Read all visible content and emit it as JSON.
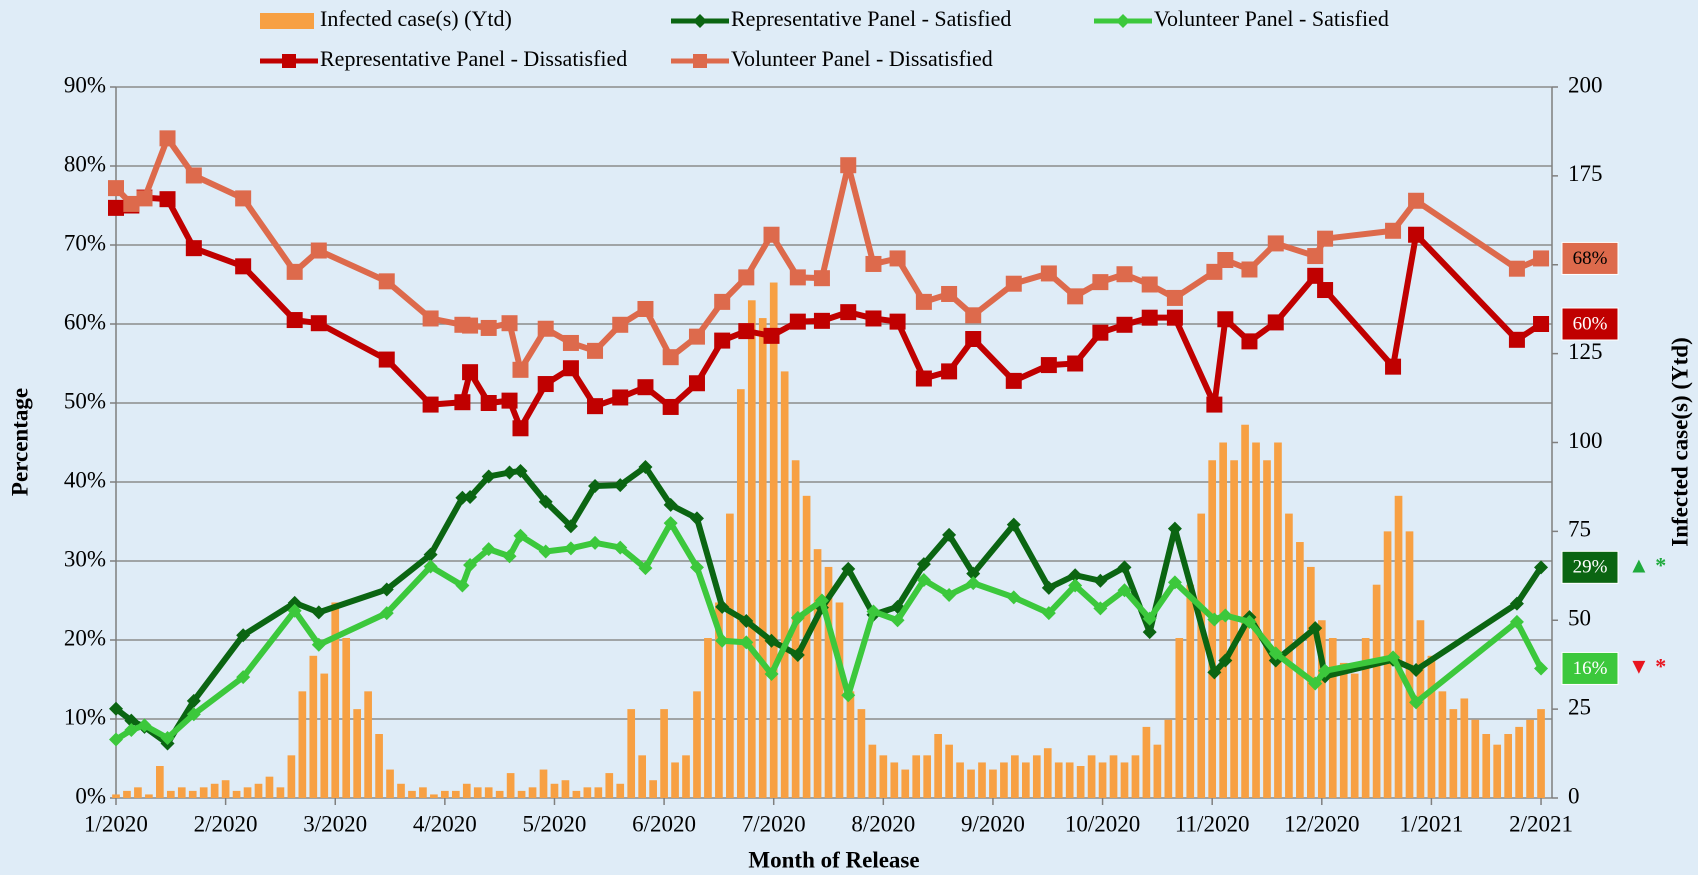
{
  "chart_data": {
    "type": "combo",
    "xlabel": "Month of Release",
    "ylabel": "Percentage",
    "y2label": "Infected case(s) (Ytd)",
    "xlim": [
      0,
      13.1
    ],
    "xticks": [
      {
        "value": 0,
        "label": "1/2020"
      },
      {
        "value": 1,
        "label": "2/2020"
      },
      {
        "value": 2,
        "label": "3/2020"
      },
      {
        "value": 3,
        "label": "4/2020"
      },
      {
        "value": 4,
        "label": "5/2020"
      },
      {
        "value": 5,
        "label": "6/2020"
      },
      {
        "value": 6,
        "label": "7/2020"
      },
      {
        "value": 7,
        "label": "8/2020"
      },
      {
        "value": 8,
        "label": "9/2020"
      },
      {
        "value": 9,
        "label": "10/2020"
      },
      {
        "value": 10,
        "label": "11/2020"
      },
      {
        "value": 11,
        "label": "12/2020"
      },
      {
        "value": 12,
        "label": "1/2021"
      },
      {
        "value": 13,
        "label": "2/2021"
      }
    ],
    "ylim": [
      0,
      90
    ],
    "yticks": [
      {
        "value": 0,
        "label": "0%"
      },
      {
        "value": 10,
        "label": "10%"
      },
      {
        "value": 20,
        "label": "20%"
      },
      {
        "value": 30,
        "label": "30%"
      },
      {
        "value": 40,
        "label": "40%"
      },
      {
        "value": 50,
        "label": "50%"
      },
      {
        "value": 60,
        "label": "60%"
      },
      {
        "value": 70,
        "label": "70%"
      },
      {
        "value": 80,
        "label": "80%"
      },
      {
        "value": 90,
        "label": "90%"
      }
    ],
    "y2lim": [
      0,
      200
    ],
    "y2ticks": [
      0,
      25,
      50,
      75,
      100,
      125,
      150,
      175,
      200
    ],
    "grid": true,
    "x": [
      0,
      0.14,
      0.26,
      0.47,
      0.71,
      1.16,
      1.63,
      1.85,
      2.47,
      2.87,
      3.16,
      3.23,
      3.4,
      3.59,
      3.69,
      3.92,
      4.15,
      4.37,
      4.6,
      4.83,
      5.06,
      5.3,
      5.53,
      5.75,
      5.98,
      6.22,
      6.44,
      6.68,
      6.91,
      7.13,
      7.37,
      7.6,
      7.82,
      8.19,
      8.51,
      8.75,
      8.98,
      9.2,
      9.43,
      9.66,
      10.02,
      10.12,
      10.34,
      10.58,
      10.94,
      11.03,
      11.65,
      11.86,
      12.78,
      13.0
    ],
    "series": [
      {
        "name": "Infected case(s) (Ytd)",
        "type": "bar",
        "axis": "y2",
        "color": "#f7a043",
        "x": [
          0,
          0.1,
          0.2,
          0.3,
          0.4,
          0.5,
          0.6,
          0.7,
          0.8,
          0.9,
          1,
          1.1,
          1.2,
          1.3,
          1.4,
          1.5,
          1.6,
          1.7,
          1.8,
          1.9,
          2,
          2.1,
          2.2,
          2.3,
          2.4,
          2.5,
          2.6,
          2.7,
          2.8,
          2.9,
          3,
          3.1,
          3.2,
          3.3,
          3.4,
          3.5,
          3.6,
          3.7,
          3.8,
          3.9,
          4,
          4.1,
          4.2,
          4.3,
          4.4,
          4.5,
          4.6,
          4.7,
          4.8,
          4.9,
          5,
          5.1,
          5.2,
          5.3,
          5.4,
          5.5,
          5.6,
          5.7,
          5.8,
          5.9,
          6,
          6.1,
          6.2,
          6.3,
          6.4,
          6.5,
          6.6,
          6.7,
          6.8,
          6.9,
          7,
          7.1,
          7.2,
          7.3,
          7.4,
          7.5,
          7.6,
          7.7,
          7.8,
          7.9,
          8,
          8.1,
          8.2,
          8.3,
          8.4,
          8.5,
          8.6,
          8.7,
          8.8,
          8.9,
          9,
          9.1,
          9.2,
          9.3,
          9.4,
          9.5,
          9.6,
          9.7,
          9.8,
          9.9,
          10,
          10.1,
          10.2,
          10.3,
          10.4,
          10.5,
          10.6,
          10.7,
          10.8,
          10.9,
          11,
          11.1,
          11.2,
          11.3,
          11.4,
          11.5,
          11.6,
          11.7,
          11.8,
          11.9,
          12,
          12.1,
          12.2,
          12.3,
          12.4,
          12.5,
          12.6,
          12.7,
          12.8,
          12.9,
          13
        ],
        "values": [
          1,
          2,
          3,
          1,
          9,
          2,
          3,
          2,
          3,
          4,
          5,
          2,
          3,
          4,
          6,
          3,
          12,
          30,
          40,
          35,
          55,
          45,
          25,
          30,
          18,
          8,
          4,
          2,
          3,
          1,
          2,
          2,
          4,
          3,
          3,
          2,
          7,
          2,
          3,
          8,
          4,
          5,
          2,
          3,
          3,
          7,
          4,
          25,
          12,
          5,
          25,
          10,
          12,
          30,
          45,
          55,
          80,
          115,
          140,
          135,
          145,
          120,
          95,
          85,
          70,
          65,
          55,
          30,
          25,
          15,
          12,
          10,
          8,
          12,
          12,
          18,
          15,
          10,
          8,
          10,
          8,
          10,
          12,
          10,
          12,
          14,
          10,
          10,
          9,
          12,
          10,
          12,
          10,
          12,
          20,
          15,
          22,
          45,
          60,
          80,
          95,
          100,
          95,
          105,
          100,
          95,
          100,
          80,
          72,
          65,
          50,
          45,
          38,
          35,
          45,
          60,
          75,
          85,
          75,
          50,
          40,
          30,
          25,
          28,
          22,
          18,
          15,
          18,
          20,
          22,
          25
        ]
      },
      {
        "name": "Representative Panel - Satisfied",
        "type": "line",
        "marker": "diamond",
        "color": "#0b6512",
        "label_text_color": "#ffffff",
        "trend": "▲ *",
        "trend_color": "#1faa3c",
        "values": [
          11.3,
          9.8,
          9,
          6.9,
          12.3,
          20.6,
          24.7,
          23.5,
          26.4,
          30.8,
          38,
          38.1,
          40.7,
          41.2,
          41.4,
          37.5,
          34.4,
          39.5,
          39.6,
          41.9,
          37.1,
          35.4,
          24.2,
          22.4,
          19.9,
          18.1,
          24.1,
          29,
          23.2,
          24.2,
          29.6,
          33.3,
          28.4,
          34.6,
          26.6,
          28.2,
          27.5,
          29.2,
          21,
          34.1,
          15.9,
          17.4,
          22.9,
          17.4,
          21.5,
          15.4,
          17.5,
          16.2,
          24.6,
          29.2
        ],
        "value_labels": [
          null,
          null,
          null,
          null,
          null,
          null,
          null,
          null,
          null,
          null,
          null,
          null,
          null,
          null,
          null,
          null,
          null,
          null,
          null,
          null,
          null,
          null,
          null,
          null,
          null,
          null,
          null,
          null,
          null,
          null,
          null,
          null,
          null,
          null,
          null,
          null,
          null,
          null,
          null,
          null,
          null,
          null,
          null,
          null,
          null,
          null,
          null,
          null,
          null,
          "29%"
        ]
      },
      {
        "name": "Volunteer Panel - Satisfied",
        "type": "line",
        "marker": "diamond",
        "color": "#3cc83c",
        "label_text_color": "#ffffff",
        "trend": "▼ *",
        "trend_color": "#e8141e",
        "values": [
          7.4,
          8.6,
          9.2,
          7.6,
          10.6,
          15.3,
          23.7,
          19.4,
          23.4,
          29.3,
          26.9,
          29.5,
          31.5,
          30.6,
          33.2,
          31.2,
          31.6,
          32.3,
          31.7,
          29.1,
          34.8,
          29.2,
          19.9,
          19.7,
          15.7,
          22.8,
          25,
          13,
          23.6,
          22.5,
          27.6,
          25.7,
          27.2,
          25.4,
          23.4,
          26.9,
          24,
          26.3,
          22.7,
          27.3,
          22.6,
          23.1,
          22.3,
          18.3,
          14.5,
          16.1,
          17.8,
          12.1,
          22.3,
          16.4
        ],
        "value_labels": [
          null,
          null,
          null,
          null,
          null,
          null,
          null,
          null,
          null,
          null,
          null,
          null,
          null,
          null,
          null,
          null,
          null,
          null,
          null,
          null,
          null,
          null,
          null,
          null,
          null,
          null,
          null,
          null,
          null,
          null,
          null,
          null,
          null,
          null,
          null,
          null,
          null,
          null,
          null,
          null,
          null,
          null,
          null,
          null,
          null,
          null,
          null,
          null,
          null,
          "16%"
        ]
      },
      {
        "name": "Representative Panel - Dissatisfied",
        "type": "line",
        "marker": "square",
        "color": "#c00000",
        "label_text_color": "#ffffff",
        "values": [
          74.7,
          75,
          76,
          75.8,
          69.6,
          67.3,
          60.5,
          60.1,
          55.5,
          49.8,
          50.1,
          53.9,
          50,
          50.3,
          46.8,
          52.4,
          54.4,
          49.6,
          50.7,
          52,
          49.5,
          52.5,
          57.9,
          59.1,
          58.5,
          60.3,
          60.4,
          61.5,
          60.7,
          60.3,
          53.1,
          54,
          58.1,
          52.8,
          54.8,
          55,
          58.9,
          59.9,
          60.8,
          60.8,
          49.8,
          60.6,
          57.8,
          60.2,
          66.1,
          64.3,
          54.6,
          71.3,
          58,
          60
        ],
        "value_labels": [
          null,
          null,
          null,
          null,
          null,
          null,
          null,
          null,
          null,
          null,
          null,
          null,
          null,
          null,
          null,
          null,
          null,
          null,
          null,
          null,
          null,
          null,
          null,
          null,
          null,
          null,
          null,
          null,
          null,
          null,
          null,
          null,
          null,
          null,
          null,
          null,
          null,
          null,
          null,
          null,
          null,
          null,
          null,
          null,
          null,
          null,
          null,
          null,
          null,
          "60%"
        ]
      },
      {
        "name": "Volunteer Panel - Dissatisfied",
        "type": "line",
        "marker": "square",
        "color": "#dd6a4c",
        "label_text_color": "#000000",
        "values": [
          77.2,
          75.2,
          75.9,
          83.5,
          78.8,
          75.9,
          66.6,
          69.3,
          65.4,
          60.7,
          59.9,
          59.8,
          59.5,
          60.1,
          54.2,
          59.4,
          57.6,
          56.6,
          59.9,
          61.9,
          55.8,
          58.4,
          62.8,
          65.9,
          71.3,
          65.9,
          65.8,
          80.1,
          67.6,
          68.3,
          62.8,
          63.8,
          61.1,
          65.1,
          66.4,
          63.5,
          65.3,
          66.3,
          65,
          63.3,
          66.6,
          68.1,
          66.9,
          70.2,
          68.6,
          70.8,
          71.8,
          75.6,
          67,
          68.3
        ],
        "value_labels": [
          null,
          null,
          null,
          null,
          null,
          null,
          null,
          null,
          null,
          null,
          null,
          null,
          null,
          null,
          null,
          null,
          null,
          null,
          null,
          null,
          null,
          null,
          null,
          null,
          null,
          null,
          null,
          null,
          null,
          null,
          null,
          null,
          null,
          null,
          null,
          null,
          null,
          null,
          null,
          null,
          null,
          null,
          null,
          null,
          null,
          null,
          null,
          null,
          null,
          "68%"
        ]
      }
    ]
  }
}
